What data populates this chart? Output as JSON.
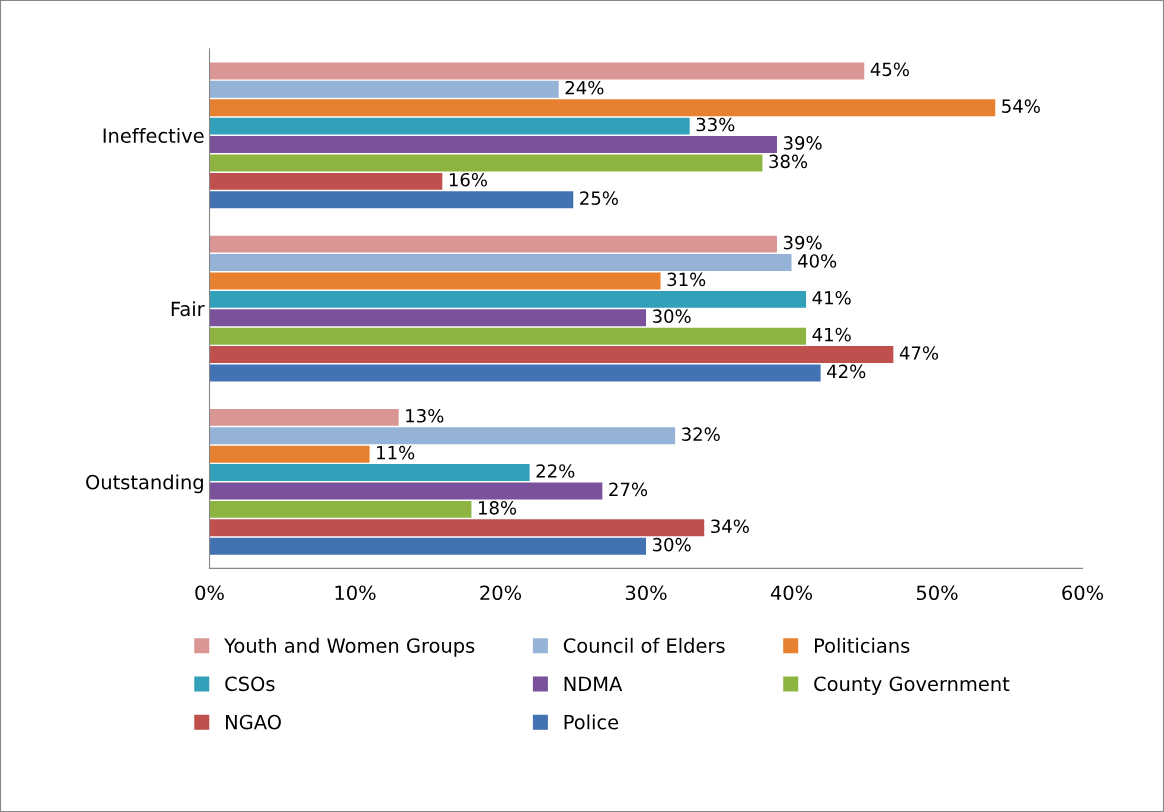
{
  "chart_data": {
    "type": "bar",
    "orientation": "horizontal",
    "categories": [
      "Ineffective",
      "Fair",
      "Outstanding"
    ],
    "series": [
      {
        "name": "Youth and Women Groups",
        "color": "#d99694",
        "values": [
          45,
          39,
          13
        ],
        "value_labels": [
          "45%",
          "39%",
          "13%"
        ]
      },
      {
        "name": "Council of Elders",
        "color": "#95b3d7",
        "values": [
          24,
          40,
          32
        ],
        "value_labels": [
          "24%",
          "40%",
          "32%"
        ]
      },
      {
        "name": "Politicians",
        "color": "#e7812f",
        "values": [
          54,
          31,
          11
        ],
        "value_labels": [
          "54%",
          "31%",
          "11%"
        ]
      },
      {
        "name": "CSOs",
        "color": "#31a0b8",
        "values": [
          33,
          41,
          22
        ],
        "value_labels": [
          "33%",
          "41%",
          "22%"
        ]
      },
      {
        "name": "NDMA",
        "color": "#7b519c",
        "values": [
          39,
          30,
          27
        ],
        "value_labels": [
          "39%",
          "30%",
          "27%"
        ]
      },
      {
        "name": "County Government",
        "color": "#8db440",
        "values": [
          38,
          41,
          18
        ],
        "value_labels": [
          "38%",
          "41%",
          "18%"
        ]
      },
      {
        "name": "NGAO",
        "color": "#c0504d",
        "values": [
          16,
          47,
          34
        ],
        "value_labels": [
          "16%",
          "47%",
          "34%"
        ]
      },
      {
        "name": "Police",
        "color": "#4372b3",
        "values": [
          25,
          42,
          30
        ],
        "value_labels": [
          "25%",
          "42%",
          "30%"
        ]
      }
    ],
    "xlim": [
      0,
      60
    ],
    "xticks": [
      {
        "value": 0,
        "label": "0%"
      },
      {
        "value": 10,
        "label": "10%"
      },
      {
        "value": 20,
        "label": "20%"
      },
      {
        "value": 30,
        "label": "30%"
      },
      {
        "value": 40,
        "label": "40%"
      },
      {
        "value": 50,
        "label": "50%"
      },
      {
        "value": 60,
        "label": "60%"
      }
    ],
    "grid": false,
    "legend": "bottom"
  }
}
